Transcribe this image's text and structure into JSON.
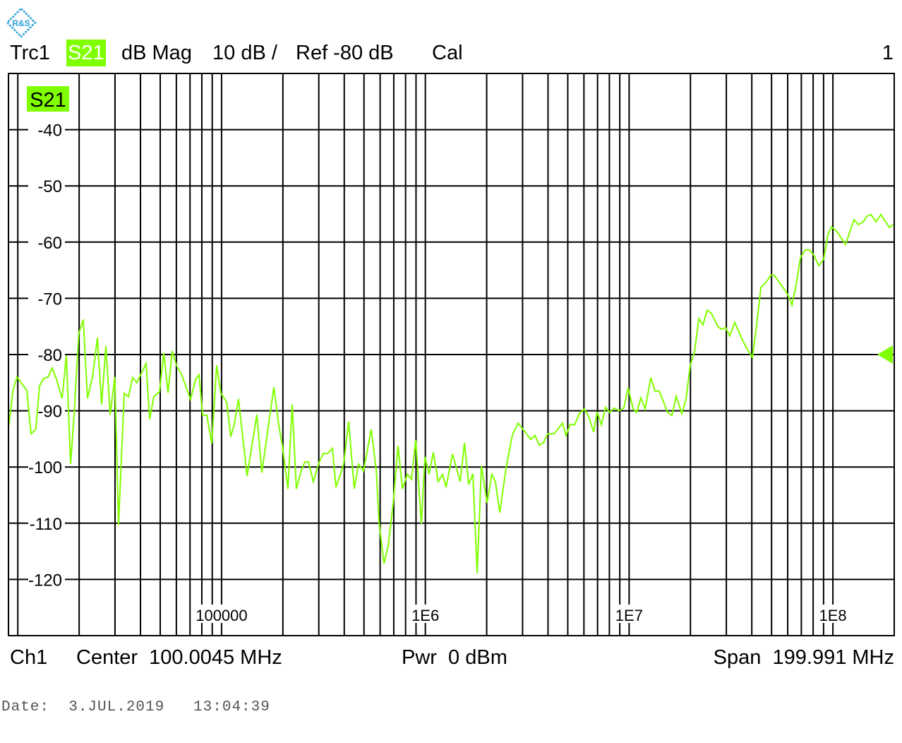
{
  "logo": {
    "text": "R&S",
    "color": "#2a9fd6"
  },
  "header": {
    "trace": "Trc1",
    "param": "S21",
    "format": "dB Mag",
    "scale": "10 dB /",
    "ref": "Ref -80 dB",
    "cal": "Cal",
    "window": "1"
  },
  "footer": {
    "channel": "Ch1",
    "center": "Center  100.0045 MHz",
    "power": "Pwr  0 dBm",
    "span": "Span  199.991 MHz"
  },
  "date": "Date:  3.JUL.2019   13:04:39",
  "colors": {
    "trace": "#80ff00",
    "grid": "#000000",
    "badge": "#80ff00"
  },
  "chart_data": {
    "type": "line",
    "trace_label": "S21",
    "x_scale": "log",
    "xlim": [
      9000,
      200000000
    ],
    "ylim": [
      -130,
      -30
    ],
    "ref_level": -80,
    "grid": true,
    "x_ticks": [
      {
        "value": 100000,
        "label": "100000"
      },
      {
        "value": 1000000,
        "label": "1E6"
      },
      {
        "value": 10000000,
        "label": "1E7"
      },
      {
        "value": 100000000,
        "label": "1E8"
      }
    ],
    "y_ticks": [
      {
        "value": -40,
        "label": "-40"
      },
      {
        "value": -50,
        "label": "-50"
      },
      {
        "value": -60,
        "label": "-60"
      },
      {
        "value": -70,
        "label": "-70"
      },
      {
        "value": -80,
        "label": "-80"
      },
      {
        "value": -90,
        "label": "-90"
      },
      {
        "value": -100,
        "label": "-100"
      },
      {
        "value": -110,
        "label": "-110"
      },
      {
        "value": -120,
        "label": "-120"
      }
    ],
    "series": [
      {
        "x": [
          9050,
          9460,
          9900,
          11070,
          11620,
          12250,
          12780,
          13370,
          14070,
          14760,
          15480,
          16500,
          17310,
          18160,
          18890,
          19920,
          20950,
          21990,
          23380,
          24590,
          25790,
          27050,
          28400,
          29940,
          31200,
          33280,
          34930,
          36630,
          38400,
          42630,
          44370,
          46530,
          49590,
          52020,
          54630,
          57240,
          60030,
          63540,
          70470,
          74520,
          77490,
          80730,
          84600,
          89460,
          94590,
          99270,
          105800,
          111000,
          115400,
          121100,
          133400,
          149000,
          157700,
          180500,
          191000,
          198700,
          211800,
          222200,
          232900,
          246500,
          256600,
          266900,
          282200,
          300800,
          315700,
          331000,
          350100,
          364100,
          397400,
          420500,
          447900,
          470200,
          496900,
          542300,
          574500,
          592700,
          627000,
          657300,
          695400,
          735000,
          771300,
          815400,
          855600,
          897000,
          955800,
          995400,
          1044000,
          1094000,
          1157000,
          1214000,
          1264000,
          1359000,
          1483000,
          1556000,
          1631000,
          1711000,
          1796000,
          1884000,
          2008000,
          2123000,
          2209000,
          2318000,
          2490000,
          2675000,
          2853000,
          3290000,
          3453000,
          3624000,
          3800000,
          3983000,
          4283000,
          4712000,
          4900000,
          5143000,
          5398000,
          5713000,
          6036000,
          6328000,
          6695000,
          6970000,
          7309000,
          7660000,
          8038000,
          8438000,
          8917000,
          9430000,
          9890000,
          10470000,
          10900000,
          11420000,
          11990000,
          12770000,
          13400000,
          14060000,
          15460000,
          16230000,
          17020000,
          18140000,
          19020000,
          19960000,
          20950000,
          21980000,
          23040000,
          24170000,
          25360000,
          27240000,
          28330000,
          29740000,
          31200000,
          32980000,
          35990000,
          37780000,
          40300000,
          42260000,
          44300000,
          46870000,
          49570000,
          51550000,
          57180000,
          60010000,
          62980000,
          66030000,
          69260000,
          73240000,
          76860000,
          80590000,
          85240000,
          90140000,
          94570000,
          98400000,
          104100000,
          110000000,
          115400000,
          127000000,
          133300000,
          140900000,
          146600000,
          153800000,
          162600000,
          172000000,
          189300000,
          200100000
        ],
        "y": [
          -92.6,
          -86.4,
          -84.0,
          -86.4,
          -94.1,
          -93.3,
          -85.6,
          -84.3,
          -84.0,
          -82.4,
          -84.4,
          -87.8,
          -80.2,
          -99.5,
          -90.7,
          -76.3,
          -73.8,
          -87.8,
          -83.5,
          -77.0,
          -88.9,
          -78.5,
          -90.7,
          -84.0,
          -110.3,
          -86.9,
          -87.5,
          -84.1,
          -85.0,
          -81.6,
          -91.5,
          -87.5,
          -86.6,
          -79.7,
          -86.8,
          -79.4,
          -81.9,
          -83.5,
          -88.0,
          -84.4,
          -83.6,
          -90.8,
          -90.8,
          -95.8,
          -81.9,
          -86.9,
          -88.4,
          -94.6,
          -92.4,
          -87.9,
          -101.6,
          -90.7,
          -101.0,
          -85.8,
          -92.7,
          -96.1,
          -103.9,
          -88.9,
          -103.9,
          -100.5,
          -99.1,
          -99.1,
          -102.6,
          -99.2,
          -97.6,
          -97.6,
          -96.7,
          -103.6,
          -99.5,
          -91.9,
          -103.9,
          -99.5,
          -100.7,
          -93.3,
          -100.7,
          -109.9,
          -117.2,
          -114.0,
          -106.5,
          -96.2,
          -103.9,
          -101.3,
          -102.2,
          -95.2,
          -110.1,
          -98.2,
          -101.3,
          -97.4,
          -102.6,
          -101.3,
          -103.6,
          -97.7,
          -102.6,
          -95.7,
          -103.1,
          -101.2,
          -118.9,
          -99.8,
          -106.4,
          -101.3,
          -102.7,
          -108.1,
          -100.2,
          -94.3,
          -92.2,
          -95.1,
          -94.4,
          -96.1,
          -95.7,
          -94.1,
          -94.1,
          -92.2,
          -94.4,
          -92.4,
          -92.5,
          -90.4,
          -89.7,
          -91.0,
          -93.8,
          -90.2,
          -92.5,
          -89.4,
          -90.3,
          -89.5,
          -90.0,
          -89.5,
          -85.9,
          -89.7,
          -90.3,
          -87.7,
          -89.7,
          -84.1,
          -86.5,
          -86.5,
          -90.3,
          -90.8,
          -87.4,
          -90.5,
          -87.9,
          -81.9,
          -79.5,
          -73.6,
          -74.7,
          -72.1,
          -72.7,
          -75.0,
          -75.5,
          -75.2,
          -76.7,
          -74.3,
          -77.4,
          -78.9,
          -80.5,
          -74.7,
          -68.1,
          -67.2,
          -65.9,
          -65.9,
          -68.2,
          -69.3,
          -71.2,
          -67.6,
          -62.8,
          -61.4,
          -61.4,
          -62.3,
          -64.2,
          -63.0,
          -58.6,
          -57.3,
          -58.0,
          -59.3,
          -60.4,
          -56.0,
          -56.9,
          -56.4,
          -55.4,
          -55.1,
          -56.4,
          -55.1,
          -57.4,
          -56.8
        ]
      }
    ]
  }
}
